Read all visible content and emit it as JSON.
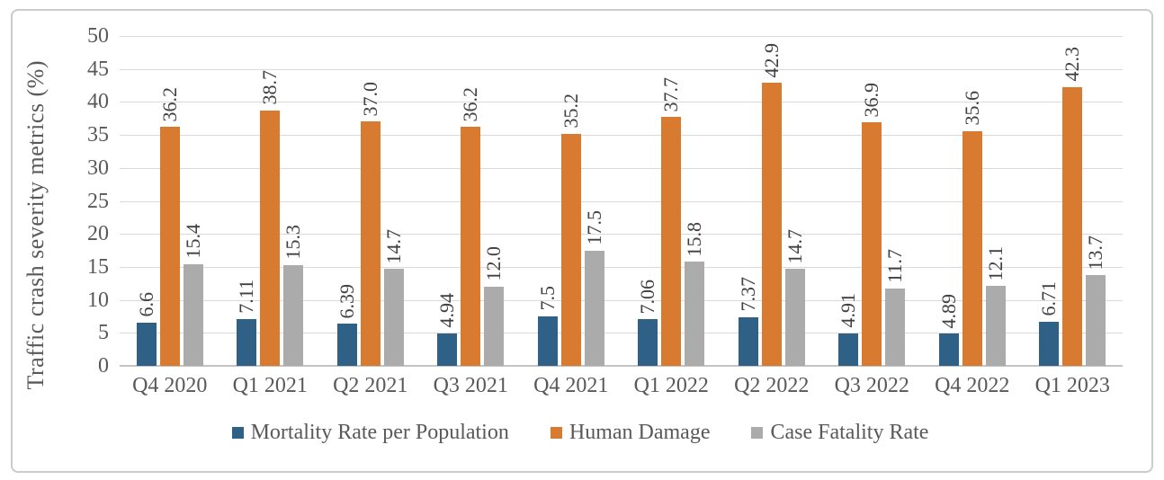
{
  "figure": {
    "background": "#ffffff",
    "frame_border_color": "#cbcbcb"
  },
  "colors": {
    "gridline": "#d9d9d9",
    "axis_line": "#c3c3c3",
    "axis_text": "#595959",
    "data_label_text": "#404040"
  },
  "chart_data": {
    "type": "bar",
    "title": "",
    "xlabel": "",
    "ylabel": "Traffic crash severity metrics (%)",
    "ylim": [
      0,
      50
    ],
    "ytick_step": 5,
    "yticks": [
      0,
      5,
      10,
      15,
      20,
      25,
      30,
      35,
      40,
      45,
      50
    ],
    "grid": "horizontal",
    "legend_position": "bottom",
    "data_label_rotation": 90,
    "categories": [
      "Q4 2020",
      "Q1 2021",
      "Q2 2021",
      "Q3 2021",
      "Q4 2021",
      "Q1 2022",
      "Q2 2022",
      "Q3 2022",
      "Q4 2022",
      "Q1 2023"
    ],
    "series": [
      {
        "name": "Mortality Rate per Population",
        "color": "#2f6086",
        "values": [
          6.6,
          7.11,
          6.39,
          4.94,
          7.5,
          7.06,
          7.37,
          4.91,
          4.89,
          6.71
        ],
        "labels": [
          "6.6",
          "7.11",
          "6.39",
          "4.94",
          "7.5",
          "7.06",
          "7.37",
          "4.91",
          "4.89",
          "6.71"
        ]
      },
      {
        "name": "Human Damage",
        "color": "#d87a30",
        "values": [
          36.2,
          38.7,
          37.0,
          36.2,
          35.2,
          37.7,
          42.9,
          36.9,
          35.6,
          42.3
        ],
        "labels": [
          "36.2",
          "38.7",
          "37.0",
          "36.2",
          "35.2",
          "37.7",
          "42.9",
          "36.9",
          "35.6",
          "42.3"
        ]
      },
      {
        "name": "Case Fatality Rate",
        "color": "#ababab",
        "values": [
          15.4,
          15.3,
          14.7,
          12.0,
          17.5,
          15.8,
          14.7,
          11.7,
          12.1,
          13.7
        ],
        "labels": [
          "15.4",
          "15.3",
          "14.7",
          "12.0",
          "17.5",
          "15.8",
          "14.7",
          "11.7",
          "12.1",
          "13.7"
        ]
      }
    ]
  }
}
